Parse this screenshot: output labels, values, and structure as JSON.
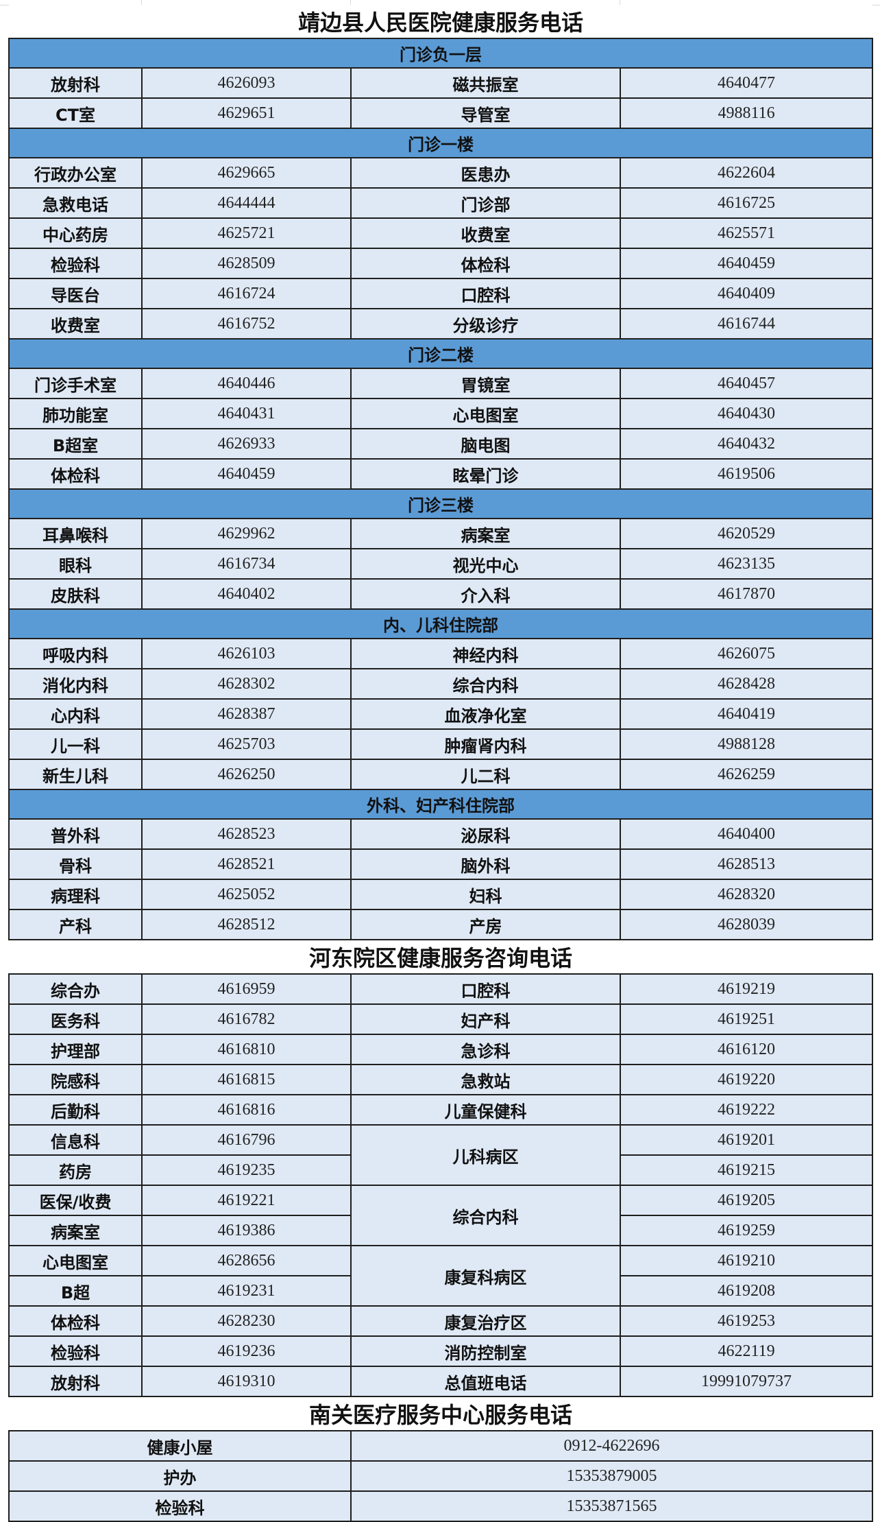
{
  "colors": {
    "section_header": "#5b9bd5",
    "cell": "#dfe9f5",
    "border": "#1e1e1e"
  },
  "jingbian": {
    "title": "靖边县人民医院健康服务电话",
    "sections": [
      {
        "header": "门诊负一层",
        "rows": [
          [
            "放射科",
            "4626093",
            "磁共振室",
            "4640477"
          ],
          [
            "CT室",
            "4629651",
            "导管室",
            "4988116"
          ]
        ]
      },
      {
        "header": "门诊一楼",
        "rows": [
          [
            "行政办公室",
            "4629665",
            "医患办",
            "4622604"
          ],
          [
            "急救电话",
            "4644444",
            "门诊部",
            "4616725"
          ],
          [
            "中心药房",
            "4625721",
            "收费室",
            "4625571"
          ],
          [
            "检验科",
            "4628509",
            "体检科",
            "4640459"
          ],
          [
            "导医台",
            "4616724",
            "口腔科",
            "4640409"
          ],
          [
            "收费室",
            "4616752",
            "分级诊疗",
            "4616744"
          ]
        ]
      },
      {
        "header": "门诊二楼",
        "rows": [
          [
            "门诊手术室",
            "4640446",
            "胃镜室",
            "4640457"
          ],
          [
            "肺功能室",
            "4640431",
            "心电图室",
            "4640430"
          ],
          [
            "B超室",
            "4626933",
            "脑电图",
            "4640432"
          ],
          [
            "体检科",
            "4640459",
            "眩晕门诊",
            "4619506"
          ]
        ]
      },
      {
        "header": "门诊三楼",
        "rows": [
          [
            "耳鼻喉科",
            "4629962",
            "病案室",
            "4620529"
          ],
          [
            "眼科",
            "4616734",
            "视光中心",
            "4623135"
          ],
          [
            "皮肤科",
            "4640402",
            "介入科",
            "4617870"
          ]
        ]
      },
      {
        "header": "内、儿科住院部",
        "rows": [
          [
            "呼吸内科",
            "4626103",
            "神经内科",
            "4626075"
          ],
          [
            "消化内科",
            "4628302",
            "综合内科",
            "4628428"
          ],
          [
            "心内科",
            "4628387",
            "血液净化室",
            "4640419"
          ],
          [
            "儿一科",
            "4625703",
            "肿瘤肾内科",
            "4988128"
          ],
          [
            "新生儿科",
            "4626250",
            "儿二科",
            "4626259"
          ]
        ]
      },
      {
        "header": "外科、妇产科住院部",
        "rows": [
          [
            "普外科",
            "4628523",
            "泌尿科",
            "4640400"
          ],
          [
            "骨科",
            "4628521",
            "脑外科",
            "4628513"
          ],
          [
            "病理科",
            "4625052",
            "妇科",
            "4628320"
          ],
          [
            "产科",
            "4628512",
            "产房",
            "4628039"
          ]
        ]
      }
    ]
  },
  "hedong": {
    "title": "河东院区健康服务咨询电话",
    "left": [
      [
        "综合办",
        "4616959"
      ],
      [
        "医务科",
        "4616782"
      ],
      [
        "护理部",
        "4616810"
      ],
      [
        "院感科",
        "4616815"
      ],
      [
        "后勤科",
        "4616816"
      ],
      [
        "信息科",
        "4616796"
      ],
      [
        "药房",
        "4619235"
      ],
      [
        "医保/收费",
        "4619221"
      ],
      [
        "病案室",
        "4619386"
      ],
      [
        "心电图室",
        "4628656"
      ],
      [
        "B超",
        "4619231"
      ],
      [
        "体检科",
        "4628230"
      ],
      [
        "检验科",
        "4619236"
      ],
      [
        "放射科",
        "4619310"
      ]
    ],
    "right": [
      {
        "name": "口腔科",
        "phones": [
          "4619219"
        ]
      },
      {
        "name": "妇产科",
        "phones": [
          "4619251"
        ]
      },
      {
        "name": "急诊科",
        "phones": [
          "4616120"
        ]
      },
      {
        "name": "急救站",
        "phones": [
          "4619220"
        ]
      },
      {
        "name": "儿童保健科",
        "phones": [
          "4619222"
        ]
      },
      {
        "name": "儿科病区",
        "phones": [
          "4619201",
          "4619215"
        ]
      },
      {
        "name": "综合内科",
        "phones": [
          "4619205",
          "4619259"
        ]
      },
      {
        "name": "康复科病区",
        "phones": [
          "4619210",
          "4619208"
        ]
      },
      {
        "name": "康复治疗区",
        "phones": [
          "4619253"
        ]
      },
      {
        "name": "消防控制室",
        "phones": [
          "4622119"
        ]
      },
      {
        "name": "总值班电话",
        "phones": [
          "19991079737"
        ]
      }
    ]
  },
  "nanguan": {
    "title": "南关医疗服务中心服务电话",
    "rows": [
      [
        "健康小屋",
        "0912-4622696"
      ],
      [
        "护办",
        "15353879005"
      ],
      [
        "检验科",
        "15353871565"
      ]
    ]
  }
}
